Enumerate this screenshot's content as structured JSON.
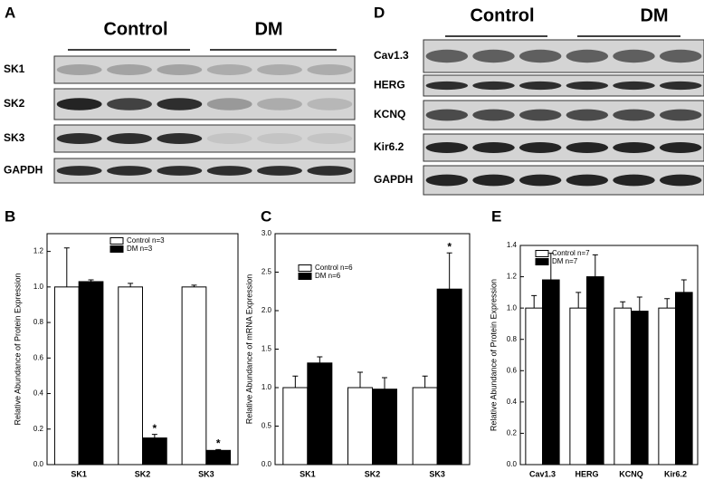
{
  "blots": [
    {
      "label": "A",
      "groups": [
        "Control",
        "DM"
      ],
      "rows": [
        "SK1",
        "SK2",
        "SK3",
        "GAPDH"
      ]
    },
    {
      "label": "D",
      "groups": [
        "Control",
        "DM"
      ],
      "rows": [
        "Cav1.3",
        "HERG",
        "KCNQ",
        "Kir6.2",
        "GAPDH"
      ]
    }
  ],
  "chart_data": [
    {
      "type": "bar",
      "label": "B",
      "ylabel": "Relative Abundance of Protein Expression",
      "categories": [
        "SK1",
        "SK2",
        "SK3"
      ],
      "series": [
        {
          "name": "Control n=3",
          "color": "#ffffff",
          "values": [
            1.0,
            1.0,
            1.0
          ],
          "errors": [
            0.22,
            0.02,
            0.01
          ]
        },
        {
          "name": "DM      n=3",
          "color": "#000000",
          "values": [
            1.03,
            0.15,
            0.08
          ],
          "errors": [
            0.01,
            0.02,
            0.005
          ]
        }
      ],
      "annotations": [
        "*",
        "*"
      ],
      "ylim": [
        0,
        1.3
      ],
      "yticks": [
        {
          "value": 0,
          "label": "0.0"
        },
        0.2,
        0.4,
        0.6,
        0.8,
        {
          "value": 1,
          "label": "1.0"
        },
        1.2
      ]
    },
    {
      "type": "bar",
      "label": "C",
      "ylabel": "Relative Abundance of mRNA Expression",
      "categories": [
        "SK1",
        "SK2",
        "SK3"
      ],
      "series": [
        {
          "name": "Control n=6",
          "color": "#ffffff",
          "values": [
            1.0,
            1.0,
            1.0
          ],
          "errors": [
            0.15,
            0.2,
            0.15
          ]
        },
        {
          "name": "DM      n=6",
          "color": "#000000",
          "values": [
            1.32,
            0.98,
            2.28
          ],
          "errors": [
            0.08,
            0.15,
            0.47
          ]
        }
      ],
      "annotations": [
        "*"
      ],
      "ylim": [
        0,
        3
      ],
      "yticks": [
        {
          "value": 0,
          "label": "0.0"
        },
        0.5,
        {
          "value": 1,
          "label": "1.0"
        },
        1.5,
        {
          "value": 2,
          "label": "2.0"
        },
        2.5,
        {
          "value": 3,
          "label": "3.0"
        }
      ]
    },
    {
      "type": "bar",
      "label": "E",
      "ylabel": "Relative Abundance of Protein Expression",
      "categories": [
        "Cav1.3",
        "HERG",
        "KCNQ",
        "Kir6.2"
      ],
      "series": [
        {
          "name": "Control n=7",
          "color": "#ffffff",
          "values": [
            1.0,
            1.0,
            1.0,
            1.0
          ],
          "errors": [
            0.08,
            0.1,
            0.04,
            0.06
          ]
        },
        {
          "name": "DM      n=7",
          "color": "#000000",
          "values": [
            1.18,
            1.2,
            0.98,
            1.1
          ],
          "errors": [
            0.17,
            0.14,
            0.09,
            0.08
          ]
        }
      ],
      "ylim": [
        0,
        1.4
      ],
      "yticks": [
        {
          "value": 0,
          "label": "0.0"
        },
        0.2,
        0.4,
        0.6,
        0.8,
        {
          "value": 1,
          "label": "1.0"
        },
        1.2,
        1.4
      ]
    }
  ]
}
